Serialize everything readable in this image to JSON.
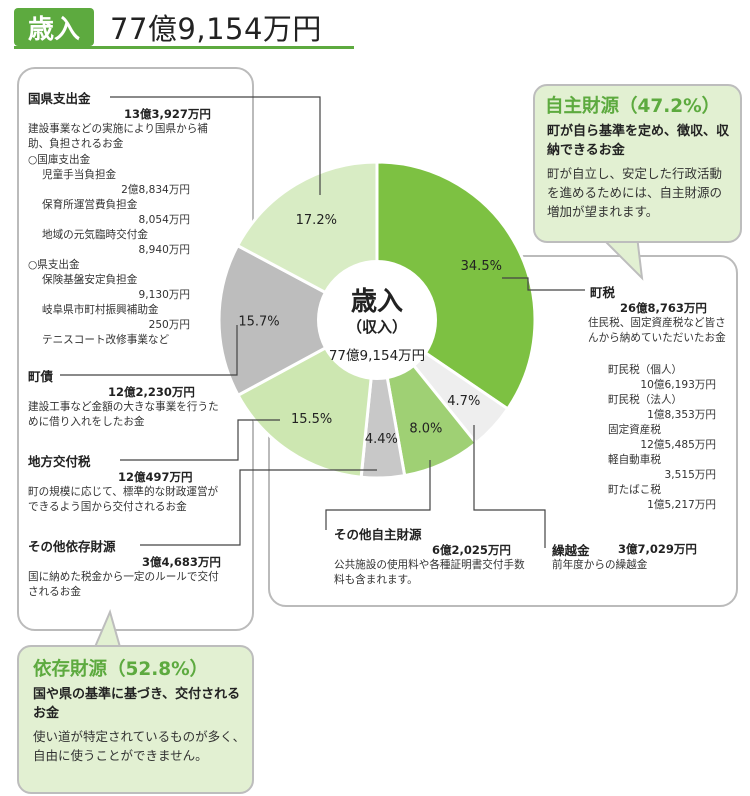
{
  "header": {
    "badge": "歳入",
    "total": "77億9,154万円"
  },
  "center": {
    "title": "歳入",
    "subtitle": "（収入）",
    "total": "77億9,154万円"
  },
  "callouts": {
    "independent": {
      "title": "自主財源（47.2%）",
      "bold": "町が自ら基準を定め、徴収、収納できるお金",
      "body": "町が自立し、安定した行政活動を進めるためには、自主財源の増加が望まれます。"
    },
    "dependent": {
      "title": "依存財源（52.8%）",
      "bold": "国や県の基準に基づき、交付されるお金",
      "body": "使い道が特定されているものが多く、自由に使うことができません。"
    }
  },
  "items": {
    "kokuken": {
      "label": "国県支出金",
      "amount": "13億3,927万円",
      "desc": "建設事業などの実施により国県から補助、負担されるお金",
      "kuni_head": "○国庫支出金",
      "kuni": [
        {
          "name": "児童手当負担金",
          "amount": "2億8,834万円"
        },
        {
          "name": "保育所運営費負担金",
          "amount": "8,054万円"
        },
        {
          "name": "地域の元気臨時交付金",
          "amount": "8,940万円"
        }
      ],
      "ken_head": "○県支出金",
      "ken": [
        {
          "name": "保険基盤安定負担金",
          "amount": "9,130万円"
        },
        {
          "name": "岐阜県市町村振興補助金",
          "amount": "250万円"
        }
      ],
      "ken_extra": "テニスコート改修事業など"
    },
    "chosai": {
      "label": "町債",
      "amount": "12億2,230万円",
      "desc": "建設工事など金額の大きな事業を行うために借り入れをしたお金"
    },
    "chihou": {
      "label": "地方交付税",
      "amount": "12億497万円",
      "desc": "町の規模に応じて、標準的な財政運営ができるよう国から交付されるお金"
    },
    "sonota_izon": {
      "label": "その他依存財源",
      "amount": "3億4,683万円",
      "desc": "国に納めた税金から一定のルールで交付されるお金"
    },
    "chozei": {
      "label": "町税",
      "amount": "26億8,763万円",
      "desc": "住民税、固定資産税など皆さんから納めていただいたお金",
      "subs": [
        {
          "name": "町民税（個人）",
          "amount": "10億6,193万円"
        },
        {
          "name": "町民税（法人）",
          "amount": "1億8,353万円"
        },
        {
          "name": "固定資産税",
          "amount": "12億5,485万円"
        },
        {
          "name": "軽自動車税",
          "amount": "3,515万円"
        },
        {
          "name": "町たばこ税",
          "amount": "1億5,217万円"
        }
      ]
    },
    "kurikoshi": {
      "label": "繰越金",
      "amount": "3億7,029万円",
      "desc": "前年度からの繰越金"
    },
    "sonota_jishu": {
      "label": "その他自主財源",
      "amount": "6億2,025万円",
      "desc": "公共施設の使用料や各種証明書交付手数料も含まれます。"
    }
  },
  "chart_data": {
    "type": "pie",
    "title": "歳入",
    "categories": [
      "町税",
      "繰越金",
      "その他自主財源",
      "その他依存財源",
      "地方交付税",
      "町債",
      "国県支出金"
    ],
    "values": [
      34.5,
      4.7,
      8.0,
      4.4,
      15.5,
      15.7,
      17.2
    ],
    "labels": [
      "34.5%",
      "4.7%",
      "8.0%",
      "4.4%",
      "15.5%",
      "15.7%",
      "17.2%"
    ],
    "colors": [
      "#7dc142",
      "#eeeeee",
      "#9fd074",
      "#c8c8c8",
      "#cde7b1",
      "#bdbdbd",
      "#d8ecc4"
    ],
    "start_angle_deg": 0,
    "direction": "clockwise",
    "donut": true
  }
}
